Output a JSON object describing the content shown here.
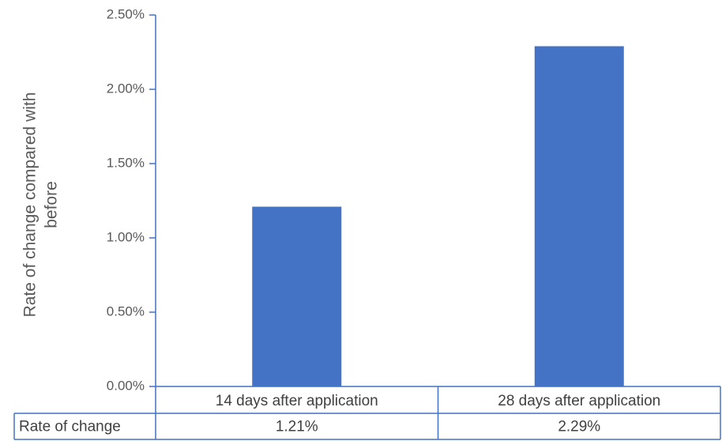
{
  "chart_data": {
    "type": "bar",
    "categories": [
      "14 days after application",
      "28 days after application"
    ],
    "series": [
      {
        "name": "Rate of change",
        "values": [
          1.21,
          2.29
        ],
        "labels": [
          "1.21%",
          "2.29%"
        ]
      }
    ],
    "ylabel_lines": [
      "Rate of change compared with",
      "before"
    ],
    "xlabel": "",
    "ylim": [
      0,
      2.5
    ],
    "yticks": [
      0,
      0.5,
      1.0,
      1.5,
      2.0,
      2.5
    ],
    "ytick_labels": [
      "0.00%",
      "0.50%",
      "1.00%",
      "1.50%",
      "2.00%",
      "2.50%"
    ],
    "y_unit": "%",
    "grid": false,
    "legend": "none",
    "data_table": true,
    "colors": {
      "bar": "#4472c4",
      "axis": "#4472c4",
      "text": "#595959"
    }
  }
}
